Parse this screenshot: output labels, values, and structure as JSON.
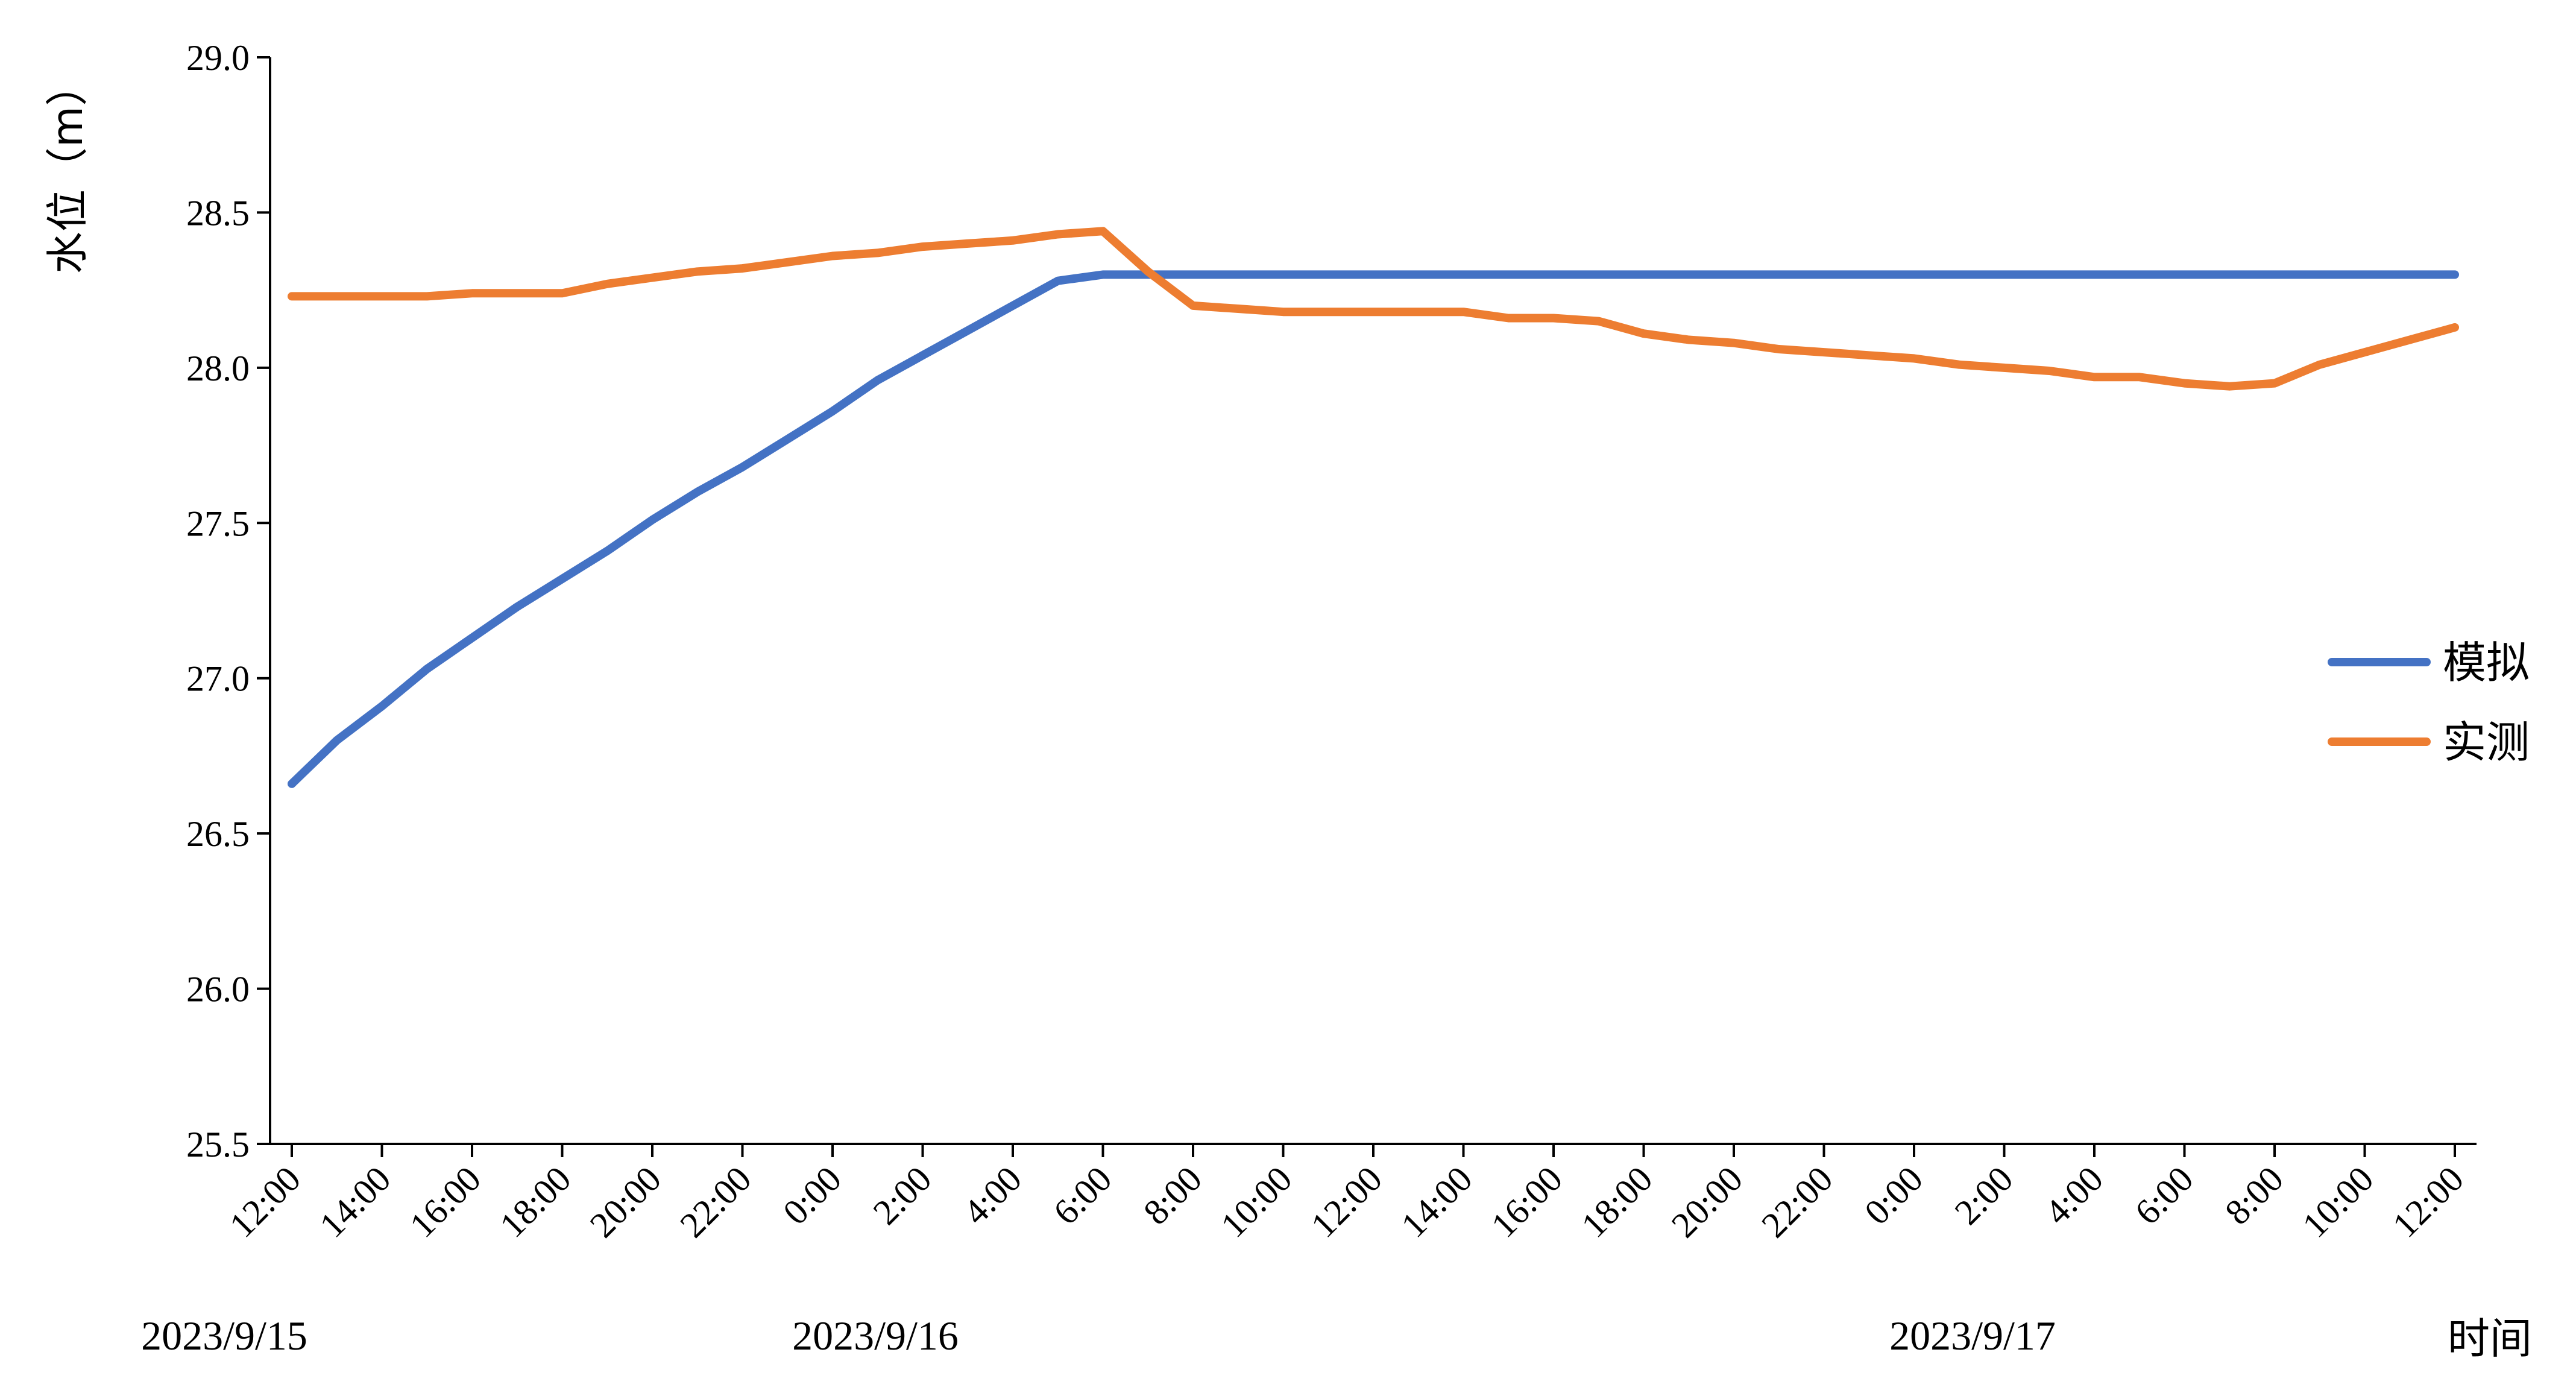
{
  "chart_data": {
    "type": "line",
    "title": "",
    "ylabel": "水位（m）",
    "xlabel": "时间",
    "ylim": [
      25.5,
      29.0
    ],
    "yticks": [
      "25.5",
      "26.0",
      "26.5",
      "27.0",
      "27.5",
      "28.0",
      "28.5",
      "29.0"
    ],
    "ytick_values": [
      25.5,
      26.0,
      26.5,
      27.0,
      27.5,
      28.0,
      28.5,
      29.0
    ],
    "x_range": [
      "2023-09-15 12:00",
      "2023-09-17 12:00"
    ],
    "xtick_labels": [
      "12:00",
      "14:00",
      "16:00",
      "18:00",
      "20:00",
      "22:00",
      "0:00",
      "2:00",
      "4:00",
      "6:00",
      "8:00",
      "10:00",
      "12:00",
      "14:00",
      "16:00",
      "18:00",
      "20:00",
      "22:00",
      "0:00",
      "2:00",
      "4:00",
      "6:00",
      "8:00",
      "10:00",
      "12:00"
    ],
    "xtick_values": [
      "2023-09-15 12:00",
      "2023-09-15 14:00",
      "2023-09-15 16:00",
      "2023-09-15 18:00",
      "2023-09-15 20:00",
      "2023-09-15 22:00",
      "2023-09-16 00:00",
      "2023-09-16 02:00",
      "2023-09-16 04:00",
      "2023-09-16 06:00",
      "2023-09-16 08:00",
      "2023-09-16 10:00",
      "2023-09-16 12:00",
      "2023-09-16 14:00",
      "2023-09-16 16:00",
      "2023-09-16 18:00",
      "2023-09-16 20:00",
      "2023-09-16 22:00",
      "2023-09-17 00:00",
      "2023-09-17 02:00",
      "2023-09-17 04:00",
      "2023-09-17 06:00",
      "2023-09-17 08:00",
      "2023-09-17 10:00",
      "2023-09-17 12:00"
    ],
    "date_labels": [
      {
        "text": "2023/9/15",
        "at": "2023-09-15 12:00"
      },
      {
        "text": "2023/9/16",
        "at": "2023-09-16 00:00"
      },
      {
        "text": "2023/9/17",
        "at": "2023-09-17 00:00"
      }
    ],
    "x": [
      "2023-09-15 12:00",
      "2023-09-15 13:00",
      "2023-09-15 14:00",
      "2023-09-15 15:00",
      "2023-09-15 16:00",
      "2023-09-15 17:00",
      "2023-09-15 18:00",
      "2023-09-15 19:00",
      "2023-09-15 20:00",
      "2023-09-15 21:00",
      "2023-09-15 22:00",
      "2023-09-15 23:00",
      "2023-09-16 00:00",
      "2023-09-16 01:00",
      "2023-09-16 02:00",
      "2023-09-16 03:00",
      "2023-09-16 04:00",
      "2023-09-16 05:00",
      "2023-09-16 06:00",
      "2023-09-16 07:00",
      "2023-09-16 08:00",
      "2023-09-16 09:00",
      "2023-09-16 10:00",
      "2023-09-16 11:00",
      "2023-09-16 12:00",
      "2023-09-16 13:00",
      "2023-09-16 14:00",
      "2023-09-16 15:00",
      "2023-09-16 16:00",
      "2023-09-16 17:00",
      "2023-09-16 18:00",
      "2023-09-16 19:00",
      "2023-09-16 20:00",
      "2023-09-16 21:00",
      "2023-09-16 22:00",
      "2023-09-16 23:00",
      "2023-09-17 00:00",
      "2023-09-17 01:00",
      "2023-09-17 02:00",
      "2023-09-17 03:00",
      "2023-09-17 04:00",
      "2023-09-17 05:00",
      "2023-09-17 06:00",
      "2023-09-17 07:00",
      "2023-09-17 08:00",
      "2023-09-17 09:00",
      "2023-09-17 10:00",
      "2023-09-17 11:00",
      "2023-09-17 12:00"
    ],
    "series": [
      {
        "name": "模拟",
        "color": "#4472C4",
        "values": [
          26.66,
          26.8,
          26.91,
          27.03,
          27.13,
          27.23,
          27.32,
          27.41,
          27.51,
          27.6,
          27.68,
          27.77,
          27.86,
          27.96,
          28.04,
          28.12,
          28.2,
          28.28,
          28.3,
          28.3,
          28.3,
          28.3,
          28.3,
          28.3,
          28.3,
          28.3,
          28.3,
          28.3,
          28.3,
          28.3,
          28.3,
          28.3,
          28.3,
          28.3,
          28.3,
          28.3,
          28.3,
          28.3,
          28.3,
          28.3,
          28.3,
          28.3,
          28.3,
          28.3,
          28.3,
          28.3,
          28.3,
          28.3,
          28.3
        ]
      },
      {
        "name": "实测",
        "color": "#ED7D31",
        "values": [
          28.23,
          28.23,
          28.23,
          28.23,
          28.24,
          28.24,
          28.24,
          28.27,
          28.29,
          28.31,
          28.32,
          28.34,
          28.36,
          28.37,
          28.39,
          28.4,
          28.41,
          28.43,
          28.44,
          28.31,
          28.2,
          28.19,
          28.18,
          28.18,
          28.18,
          28.18,
          28.18,
          28.16,
          28.16,
          28.15,
          28.11,
          28.09,
          28.08,
          28.06,
          28.05,
          28.04,
          28.03,
          28.01,
          28.0,
          27.99,
          27.97,
          27.97,
          27.95,
          27.94,
          27.95,
          28.01,
          28.05,
          28.09,
          28.13
        ]
      }
    ],
    "grid": false,
    "legend": "right-middle"
  }
}
